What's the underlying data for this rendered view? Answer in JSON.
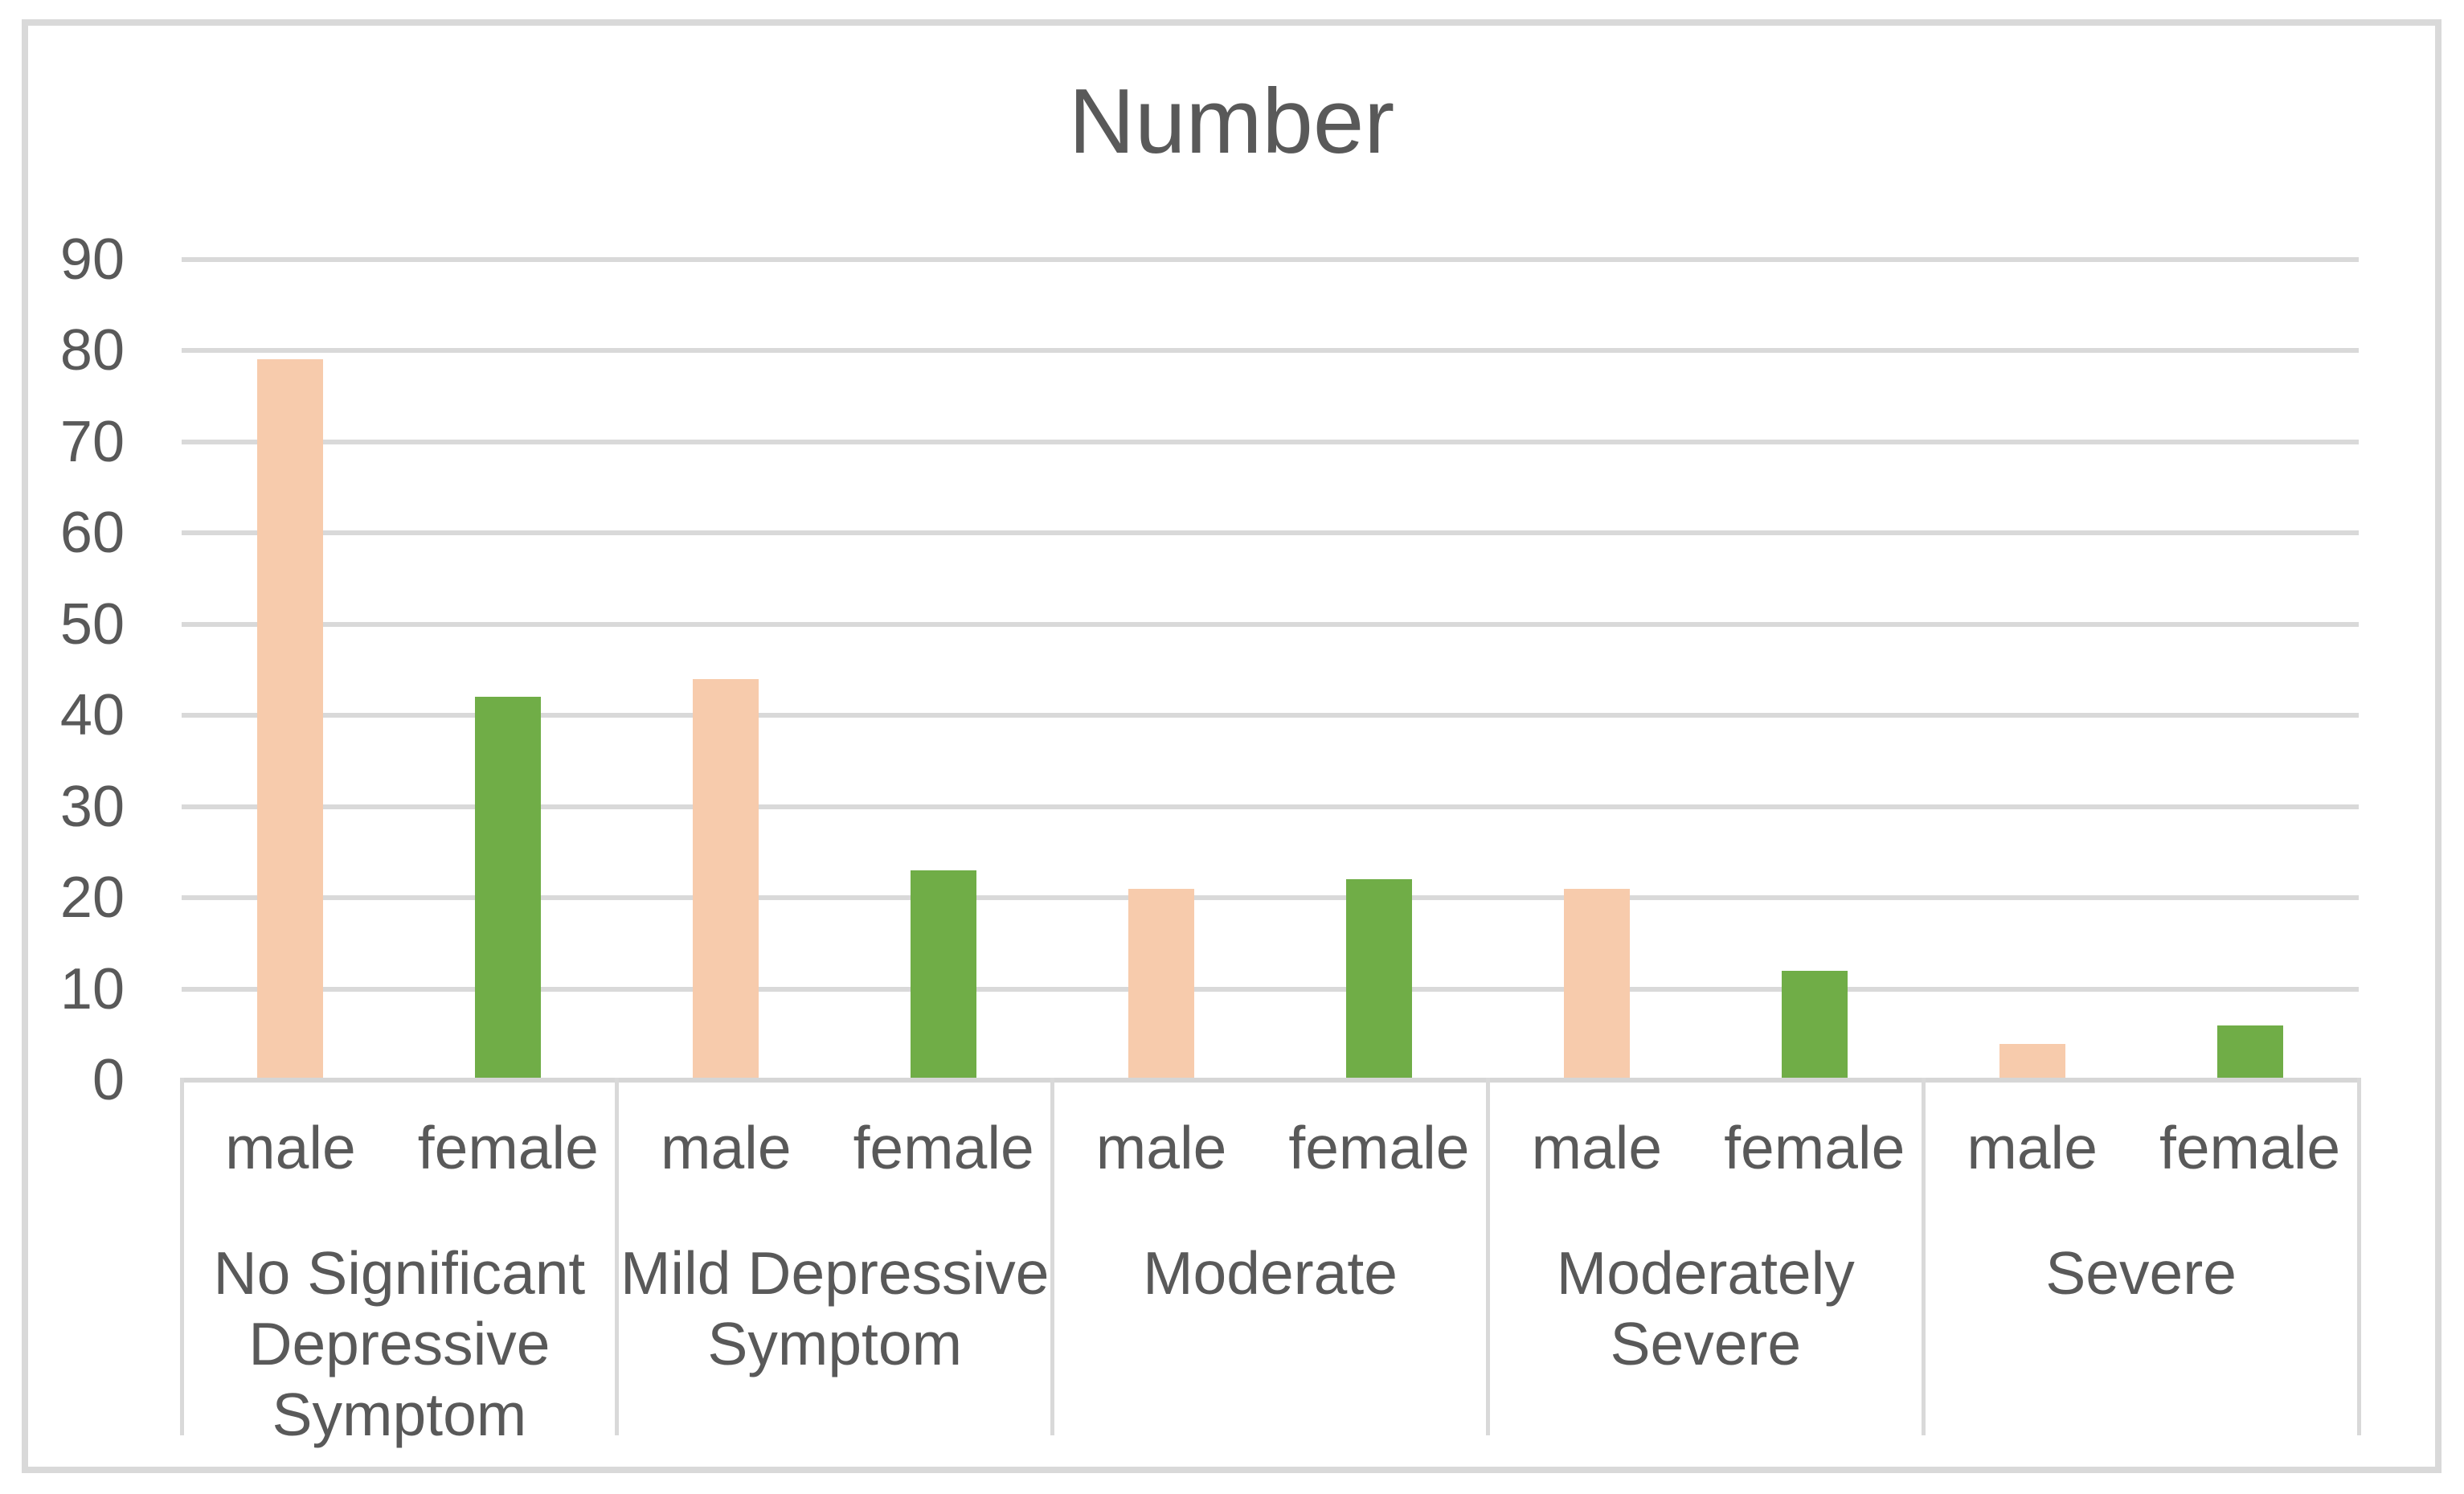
{
  "title": "Number",
  "colors": {
    "male_bar": "#F7CBAC",
    "female_bar": "#70AD47",
    "gridline": "#D9D9D9",
    "frame_border": "#D9D9D9",
    "text": "#595959"
  },
  "chart_data": {
    "type": "bar",
    "title": "Number",
    "categories": [
      "No Significant Depressive Symptom",
      "Mild Depressive Symptom",
      "Moderate",
      "Moderately Severe",
      "Severe"
    ],
    "category_display_lines": [
      [
        "No Significant",
        "Depressive",
        "Symptom"
      ],
      [
        "Mild Depressive",
        "Symptom"
      ],
      [
        "Moderate"
      ],
      [
        "Moderately",
        "Severe"
      ],
      [
        "Severe"
      ]
    ],
    "sub_categories": [
      "male",
      "female"
    ],
    "series": [
      {
        "name": "male",
        "color": "#F7CBAC",
        "values": [
          79,
          44,
          21,
          21,
          4
        ]
      },
      {
        "name": "female",
        "color": "#70AD47",
        "values": [
          42,
          23,
          22,
          12,
          6
        ]
      }
    ],
    "xlabel": "",
    "ylabel": "",
    "ylim": [
      0,
      90
    ],
    "ytick_step": 10,
    "yticks": [
      0,
      10,
      20,
      30,
      40,
      50,
      60,
      70,
      80,
      90
    ],
    "grid": true,
    "legend": "none"
  }
}
